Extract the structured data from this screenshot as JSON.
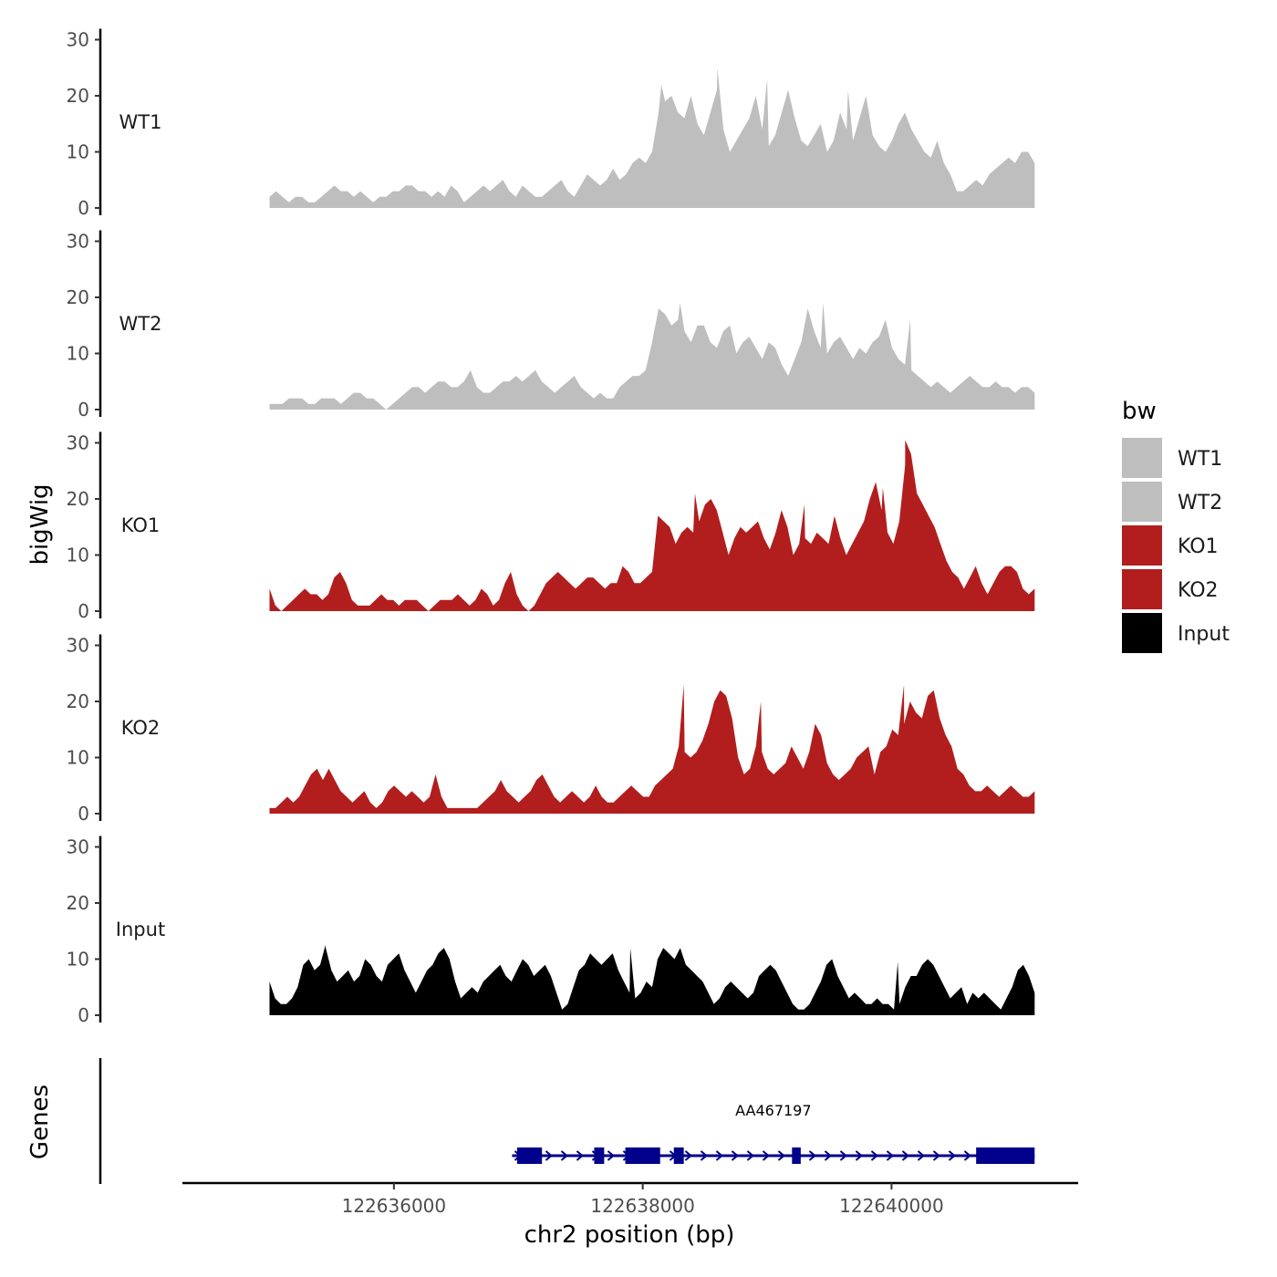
{
  "chart_data": {
    "type": "area",
    "ylabel": "bigWig",
    "xlabel": "chr2 position (bp)",
    "xlim": [
      122634300,
      122641500
    ],
    "data_range": [
      122635000,
      122641150
    ],
    "x_ticks": [
      {
        "value": 122636000,
        "label": "122636000"
      },
      {
        "value": 122638000,
        "label": "122638000"
      },
      {
        "value": 122640000,
        "label": "122640000"
      }
    ],
    "y_ticks": [
      {
        "value": 0,
        "label": "0"
      },
      {
        "value": 10,
        "label": "10"
      },
      {
        "value": 20,
        "label": "20"
      },
      {
        "value": 30,
        "label": "30"
      }
    ],
    "ylim": [
      0,
      30
    ],
    "legend": {
      "title": "bw",
      "position": "right",
      "entries": [
        {
          "label": "WT1",
          "color": "#bebebe"
        },
        {
          "label": "WT2",
          "color": "#bebebe"
        },
        {
          "label": "KO1",
          "color": "#b21e1e"
        },
        {
          "label": "KO2",
          "color": "#b21e1e"
        },
        {
          "label": "Input",
          "color": "#000000"
        }
      ]
    },
    "series": [
      {
        "name": "WT1",
        "color": "#bebebe",
        "values": [
          2,
          3,
          2,
          1,
          2,
          2,
          1,
          1,
          2,
          3,
          4,
          3,
          3,
          2,
          3,
          2,
          1,
          2,
          2,
          3,
          3,
          4,
          4,
          3,
          3,
          2,
          3,
          2,
          4,
          3,
          1,
          2,
          3,
          4,
          3,
          4,
          5,
          3,
          2,
          4,
          3,
          2,
          2,
          3,
          4,
          5,
          3,
          2,
          4,
          6,
          5,
          4,
          5,
          7,
          5,
          6,
          8,
          9,
          8,
          10,
          17,
          19,
          20,
          17,
          16,
          20,
          15,
          13,
          17,
          21,
          14,
          10,
          12,
          14,
          16,
          20,
          14,
          11,
          13,
          17,
          21,
          16,
          12,
          11,
          13,
          15,
          10,
          12,
          17,
          14,
          12,
          16,
          20,
          13,
          11,
          10,
          12,
          15,
          17,
          14,
          12,
          10,
          9,
          12,
          8,
          6,
          3,
          3,
          4,
          5,
          4,
          6,
          7,
          8,
          9,
          8,
          10,
          10,
          8
        ],
        "peaks": [
          {
            "value": 25,
            "x": 122638600
          },
          {
            "value": 23,
            "x": 122639000
          },
          {
            "value": 22,
            "x": 122638150
          },
          {
            "value": 21,
            "x": 122639650
          }
        ]
      },
      {
        "name": "WT2",
        "color": "#bebebe",
        "values": [
          1,
          1,
          1,
          2,
          2,
          2,
          1,
          1,
          2,
          2,
          2,
          1,
          2,
          3,
          3,
          2,
          2,
          1,
          0,
          1,
          2,
          3,
          4,
          4,
          3,
          4,
          5,
          5,
          4,
          4,
          5,
          7,
          4,
          3,
          3,
          4,
          5,
          5,
          6,
          5,
          6,
          7,
          5,
          4,
          3,
          4,
          5,
          6,
          4,
          3,
          2,
          3,
          2,
          2,
          4,
          5,
          6,
          6,
          7,
          12,
          18,
          17,
          15,
          16,
          14,
          12,
          15,
          15,
          12,
          11,
          14,
          15,
          10,
          12,
          13,
          11,
          9,
          12,
          11,
          8,
          6,
          9,
          12,
          18,
          14,
          11,
          10,
          12,
          13,
          11,
          9,
          11,
          10,
          12,
          13,
          16,
          11,
          9,
          8,
          7,
          6,
          5,
          4,
          5,
          4,
          3,
          4,
          5,
          6,
          5,
          4,
          4,
          5,
          4,
          4,
          3,
          4,
          4,
          3
        ],
        "peaks": [
          {
            "value": 19,
            "x": 122638300
          },
          {
            "value": 19,
            "x": 122639450
          },
          {
            "value": 16,
            "x": 122640150
          }
        ]
      },
      {
        "name": "KO1",
        "color": "#b21e1e",
        "values": [
          4,
          1,
          0,
          1,
          2,
          3,
          4,
          3,
          3,
          2,
          3,
          6,
          7,
          5,
          2,
          1,
          1,
          1,
          2,
          3,
          2,
          2,
          1,
          2,
          2,
          2,
          1,
          0,
          1,
          2,
          2,
          2,
          3,
          2,
          1,
          2,
          4,
          3,
          1,
          2,
          5,
          7,
          3,
          1,
          0,
          1,
          3,
          5,
          6,
          7,
          6,
          5,
          4,
          5,
          6,
          6,
          5,
          4,
          5,
          5,
          8,
          7,
          5,
          5,
          6,
          7,
          17,
          16,
          15,
          12,
          14,
          15,
          14,
          16,
          19,
          20,
          18,
          14,
          10,
          13,
          15,
          14,
          15,
          16,
          13,
          11,
          14,
          18,
          15,
          10,
          12,
          13,
          12,
          14,
          13,
          12,
          17,
          13,
          10,
          12,
          14,
          16,
          20,
          23,
          18,
          14,
          12,
          16,
          26,
          28,
          21,
          19,
          17,
          15,
          12,
          9,
          7,
          6,
          4,
          6,
          8,
          5,
          3,
          5,
          7,
          8,
          8,
          7,
          4,
          3,
          4
        ],
        "peaks": [
          {
            "value": 30.5,
            "x": 122640110
          },
          {
            "value": 22,
            "x": 122639930
          },
          {
            "value": 21,
            "x": 122638420
          },
          {
            "value": 19,
            "x": 122639300
          }
        ]
      },
      {
        "name": "KO2",
        "color": "#b21e1e",
        "values": [
          1,
          1,
          2,
          3,
          2,
          3,
          5,
          7,
          8,
          6,
          8,
          6,
          4,
          3,
          2,
          3,
          4,
          2,
          1,
          2,
          4,
          5,
          4,
          3,
          4,
          3,
          2,
          3,
          7,
          3,
          1,
          1,
          1,
          1,
          1,
          1,
          2,
          3,
          4,
          6,
          4,
          3,
          2,
          3,
          4,
          6,
          7,
          5,
          3,
          2,
          3,
          4,
          3,
          2,
          3,
          5,
          3,
          2,
          2,
          3,
          4,
          5,
          4,
          3,
          3,
          5,
          6,
          7,
          8,
          12,
          11,
          10,
          11,
          13,
          16,
          20,
          22,
          21,
          17,
          10,
          7,
          8,
          12,
          11,
          8,
          7,
          8,
          9,
          12,
          10,
          8,
          11,
          16,
          14,
          9,
          7,
          6,
          7,
          8,
          10,
          11,
          12,
          7,
          11,
          12,
          15,
          14,
          16,
          20,
          18,
          17,
          21,
          22,
          17,
          14,
          12,
          8,
          7,
          5,
          4,
          4,
          5,
          4,
          3,
          4,
          5,
          4,
          3,
          3,
          4
        ],
        "peaks": [
          {
            "value": 23,
            "x": 122638330
          },
          {
            "value": 20,
            "x": 122638950
          },
          {
            "value": 23,
            "x": 122640100
          }
        ]
      },
      {
        "name": "Input",
        "color": "#000000",
        "values": [
          6,
          3,
          2,
          2,
          3,
          5,
          9,
          10,
          8,
          9,
          12,
          8,
          6,
          7,
          8,
          6,
          7,
          10,
          9,
          7,
          6,
          9,
          10,
          11,
          8,
          6,
          4,
          6,
          8,
          9,
          11,
          12,
          10,
          6,
          3,
          4,
          5,
          4,
          6,
          7,
          8,
          9,
          7,
          6,
          8,
          10,
          9,
          7,
          8,
          9,
          7,
          4,
          1,
          2,
          5,
          8,
          9,
          11,
          10,
          9,
          10,
          11,
          8,
          6,
          4,
          3,
          4,
          6,
          5,
          10,
          12,
          11,
          10,
          12,
          9,
          8,
          7,
          6,
          4,
          2,
          3,
          5,
          6,
          5,
          4,
          3,
          4,
          7,
          8,
          9,
          8,
          6,
          4,
          2,
          1,
          1,
          2,
          4,
          6,
          9,
          10,
          7,
          5,
          3,
          4,
          3,
          2,
          2,
          3,
          2,
          2,
          1,
          2,
          5,
          7,
          7,
          9,
          10,
          9,
          7,
          5,
          3,
          4,
          5,
          2,
          4,
          3,
          4,
          3,
          2,
          1,
          3,
          5,
          8,
          9,
          7,
          4
        ],
        "peaks": [
          {
            "value": 12.5,
            "x": 122635450
          },
          {
            "value": 12,
            "x": 122637900
          },
          {
            "value": 9.5,
            "x": 122640050
          }
        ]
      }
    ],
    "genes_track": {
      "label": "Genes",
      "gene_name": "AA467197",
      "strand": "+",
      "start": 122636950,
      "end": 122641150,
      "exons": [
        {
          "start": 122636990,
          "end": 122637190
        },
        {
          "start": 122637610,
          "end": 122637690
        },
        {
          "start": 122637860,
          "end": 122638140
        },
        {
          "start": 122638250,
          "end": 122638330
        },
        {
          "start": 122639200,
          "end": 122639270
        },
        {
          "start": 122640680,
          "end": 122641150
        }
      ]
    }
  }
}
